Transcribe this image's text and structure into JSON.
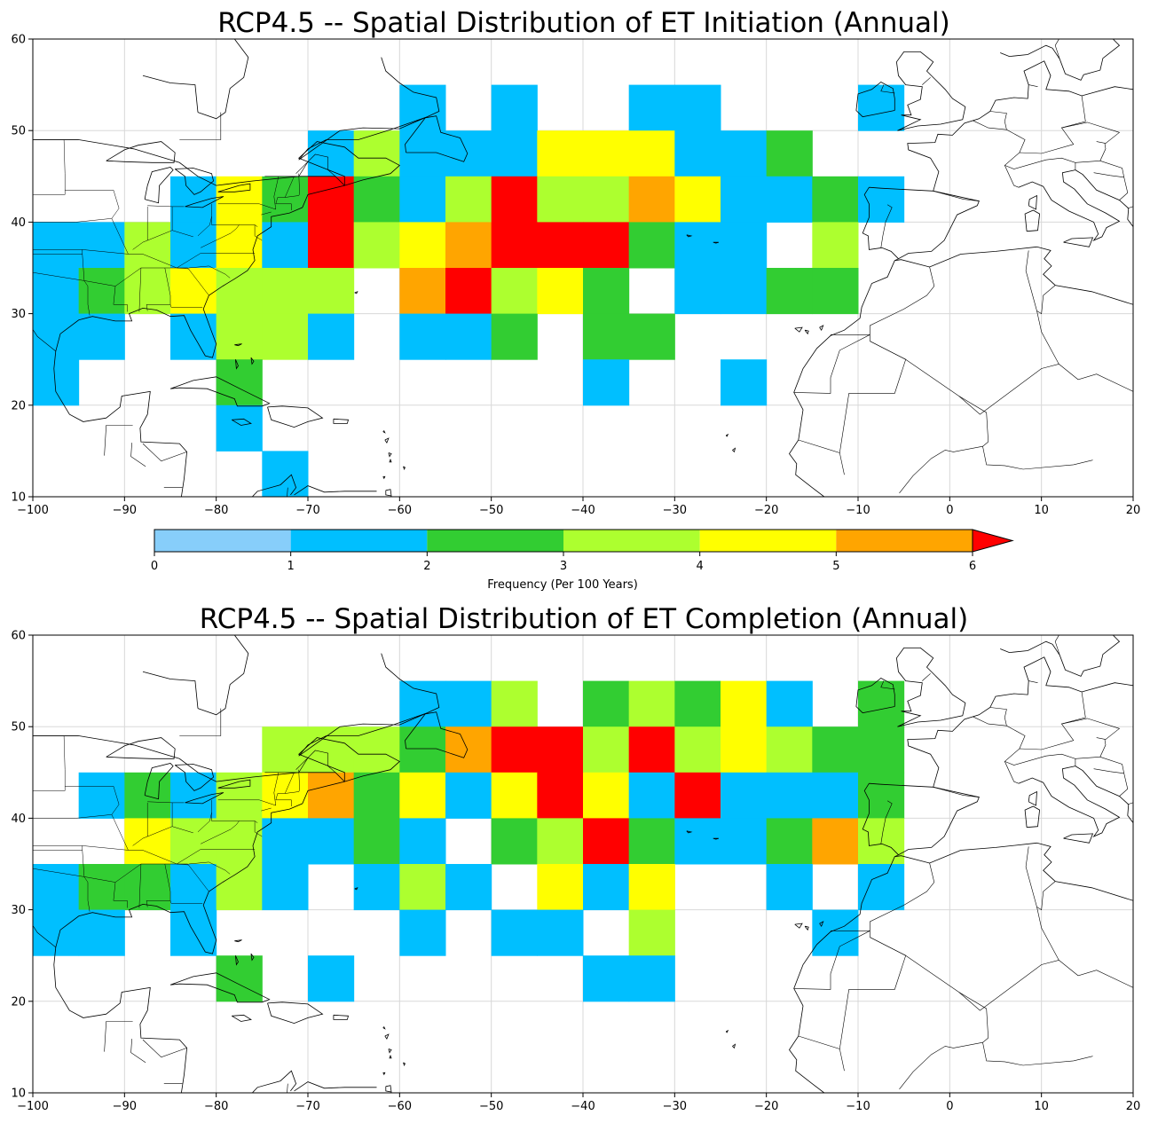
{
  "chart_data": [
    {
      "type": "heatmap",
      "title": "RCP4.5 -- Spatial Distribution of ET Initiation (Annual)",
      "xlim": [
        -100,
        20
      ],
      "ylim": [
        10,
        60
      ],
      "xticks": [
        -100,
        -90,
        -80,
        -70,
        -60,
        -50,
        -40,
        -30,
        -20,
        -10,
        0,
        10,
        20
      ],
      "yticks": [
        10,
        20,
        30,
        40,
        50,
        60
      ],
      "grid": true,
      "cell_size_deg": 5,
      "cells_note": "each cell = [west_lon, south_lat, frequency_bin_lower_bound]",
      "cells": [
        [
          -60,
          50,
          1
        ],
        [
          -50,
          50,
          1
        ],
        [
          -35,
          50,
          1
        ],
        [
          -30,
          50,
          1
        ],
        [
          -10,
          50,
          1
        ],
        [
          -70,
          45,
          1
        ],
        [
          -65,
          45,
          3
        ],
        [
          -60,
          45,
          1
        ],
        [
          -55,
          45,
          1
        ],
        [
          -50,
          45,
          1
        ],
        [
          -45,
          45,
          4
        ],
        [
          -40,
          45,
          4
        ],
        [
          -35,
          45,
          4
        ],
        [
          -30,
          45,
          1
        ],
        [
          -25,
          45,
          1
        ],
        [
          -20,
          45,
          2
        ],
        [
          -85,
          40,
          1
        ],
        [
          -80,
          40,
          4
        ],
        [
          -75,
          40,
          2
        ],
        [
          -70,
          40,
          6
        ],
        [
          -65,
          40,
          2
        ],
        [
          -60,
          40,
          1
        ],
        [
          -55,
          40,
          3
        ],
        [
          -50,
          40,
          6
        ],
        [
          -45,
          40,
          3
        ],
        [
          -40,
          40,
          3
        ],
        [
          -35,
          40,
          5
        ],
        [
          -30,
          40,
          4
        ],
        [
          -25,
          40,
          1
        ],
        [
          -20,
          40,
          1
        ],
        [
          -15,
          40,
          2
        ],
        [
          -10,
          40,
          1
        ],
        [
          -100,
          35,
          1
        ],
        [
          -95,
          35,
          1
        ],
        [
          -90,
          35,
          3
        ],
        [
          -85,
          35,
          1
        ],
        [
          -80,
          35,
          4
        ],
        [
          -75,
          35,
          1
        ],
        [
          -70,
          35,
          6
        ],
        [
          -65,
          35,
          3
        ],
        [
          -60,
          35,
          4
        ],
        [
          -55,
          35,
          5
        ],
        [
          -50,
          35,
          6
        ],
        [
          -45,
          35,
          6
        ],
        [
          -40,
          35,
          6
        ],
        [
          -35,
          35,
          2
        ],
        [
          -30,
          35,
          1
        ],
        [
          -25,
          35,
          1
        ],
        [
          -15,
          35,
          3
        ],
        [
          -100,
          30,
          1
        ],
        [
          -95,
          30,
          2
        ],
        [
          -90,
          30,
          3
        ],
        [
          -85,
          30,
          4
        ],
        [
          -80,
          30,
          3
        ],
        [
          -75,
          30,
          3
        ],
        [
          -70,
          30,
          3
        ],
        [
          -60,
          30,
          5
        ],
        [
          -55,
          30,
          6
        ],
        [
          -50,
          30,
          3
        ],
        [
          -45,
          30,
          4
        ],
        [
          -40,
          30,
          2
        ],
        [
          -30,
          30,
          1
        ],
        [
          -25,
          30,
          1
        ],
        [
          -20,
          30,
          2
        ],
        [
          -15,
          30,
          2
        ],
        [
          -100,
          25,
          1
        ],
        [
          -95,
          25,
          1
        ],
        [
          -85,
          25,
          1
        ],
        [
          -80,
          25,
          3
        ],
        [
          -75,
          25,
          3
        ],
        [
          -70,
          25,
          1
        ],
        [
          -60,
          25,
          1
        ],
        [
          -55,
          25,
          1
        ],
        [
          -50,
          25,
          2
        ],
        [
          -40,
          25,
          2
        ],
        [
          -35,
          25,
          2
        ],
        [
          -100,
          20,
          1
        ],
        [
          -80,
          20,
          2
        ],
        [
          -40,
          20,
          1
        ],
        [
          -25,
          20,
          1
        ],
        [
          -80,
          15,
          1
        ],
        [
          -75,
          10,
          1
        ]
      ]
    },
    {
      "type": "heatmap",
      "title": "RCP4.5 -- Spatial Distribution of ET Completion (Annual)",
      "xlim": [
        -100,
        20
      ],
      "ylim": [
        10,
        60
      ],
      "xticks": [
        -100,
        -90,
        -80,
        -70,
        -60,
        -50,
        -40,
        -30,
        -20,
        -10,
        0,
        10,
        20
      ],
      "yticks": [
        10,
        20,
        30,
        40,
        50,
        60
      ],
      "grid": true,
      "cell_size_deg": 5,
      "cells_note": "each cell = [west_lon, south_lat, frequency_bin_lower_bound]",
      "cells": [
        [
          -60,
          50,
          1
        ],
        [
          -55,
          50,
          1
        ],
        [
          -50,
          50,
          3
        ],
        [
          -40,
          50,
          2
        ],
        [
          -35,
          50,
          3
        ],
        [
          -30,
          50,
          2
        ],
        [
          -25,
          50,
          4
        ],
        [
          -20,
          50,
          1
        ],
        [
          -10,
          50,
          2
        ],
        [
          -75,
          45,
          3
        ],
        [
          -70,
          45,
          3
        ],
        [
          -65,
          45,
          3
        ],
        [
          -60,
          45,
          2
        ],
        [
          -55,
          45,
          5
        ],
        [
          -50,
          45,
          6
        ],
        [
          -45,
          45,
          6
        ],
        [
          -40,
          45,
          3
        ],
        [
          -35,
          45,
          6
        ],
        [
          -30,
          45,
          3
        ],
        [
          -25,
          45,
          4
        ],
        [
          -20,
          45,
          3
        ],
        [
          -15,
          45,
          2
        ],
        [
          -10,
          45,
          2
        ],
        [
          -95,
          40,
          1
        ],
        [
          -90,
          40,
          2
        ],
        [
          -85,
          40,
          1
        ],
        [
          -80,
          40,
          3
        ],
        [
          -75,
          40,
          4
        ],
        [
          -70,
          40,
          5
        ],
        [
          -65,
          40,
          2
        ],
        [
          -60,
          40,
          4
        ],
        [
          -55,
          40,
          1
        ],
        [
          -50,
          40,
          4
        ],
        [
          -45,
          40,
          6
        ],
        [
          -40,
          40,
          4
        ],
        [
          -35,
          40,
          1
        ],
        [
          -30,
          40,
          6
        ],
        [
          -25,
          40,
          1
        ],
        [
          -20,
          40,
          1
        ],
        [
          -15,
          40,
          1
        ],
        [
          -10,
          40,
          2
        ],
        [
          -90,
          35,
          4
        ],
        [
          -85,
          35,
          3
        ],
        [
          -80,
          35,
          3
        ],
        [
          -75,
          35,
          1
        ],
        [
          -70,
          35,
          1
        ],
        [
          -65,
          35,
          2
        ],
        [
          -60,
          35,
          1
        ],
        [
          -50,
          35,
          2
        ],
        [
          -45,
          35,
          3
        ],
        [
          -40,
          35,
          6
        ],
        [
          -35,
          35,
          2
        ],
        [
          -30,
          35,
          1
        ],
        [
          -25,
          35,
          1
        ],
        [
          -20,
          35,
          2
        ],
        [
          -15,
          35,
          5
        ],
        [
          -10,
          35,
          3
        ],
        [
          -100,
          30,
          1
        ],
        [
          -95,
          30,
          2
        ],
        [
          -90,
          30,
          2
        ],
        [
          -85,
          30,
          1
        ],
        [
          -80,
          30,
          3
        ],
        [
          -75,
          30,
          1
        ],
        [
          -65,
          30,
          1
        ],
        [
          -60,
          30,
          3
        ],
        [
          -55,
          30,
          1
        ],
        [
          -45,
          30,
          4
        ],
        [
          -40,
          30,
          1
        ],
        [
          -35,
          30,
          4
        ],
        [
          -20,
          30,
          1
        ],
        [
          -10,
          30,
          1
        ],
        [
          -100,
          25,
          1
        ],
        [
          -95,
          25,
          1
        ],
        [
          -85,
          25,
          1
        ],
        [
          -60,
          25,
          1
        ],
        [
          -50,
          25,
          1
        ],
        [
          -45,
          25,
          1
        ],
        [
          -35,
          25,
          3
        ],
        [
          -15,
          25,
          1
        ],
        [
          -80,
          20,
          2
        ],
        [
          -70,
          20,
          1
        ],
        [
          -40,
          20,
          1
        ],
        [
          -35,
          20,
          1
        ]
      ]
    }
  ],
  "colorbar": {
    "label": "Frequency (Per 100 Years)",
    "ticks": [
      "0",
      "1",
      "2",
      "3",
      "4",
      "5",
      "6"
    ],
    "bins": [
      {
        "from": 0,
        "to": 1,
        "color": "#87cefa"
      },
      {
        "from": 1,
        "to": 2,
        "color": "#00bfff"
      },
      {
        "from": 2,
        "to": 3,
        "color": "#32cd32"
      },
      {
        "from": 3,
        "to": 4,
        "color": "#adff2f"
      },
      {
        "from": 4,
        "to": 5,
        "color": "#ffff00"
      },
      {
        "from": 5,
        "to": 6,
        "color": "#ffa500"
      },
      {
        "from": 6,
        "to": null,
        "color": "#ff0000"
      }
    ]
  }
}
